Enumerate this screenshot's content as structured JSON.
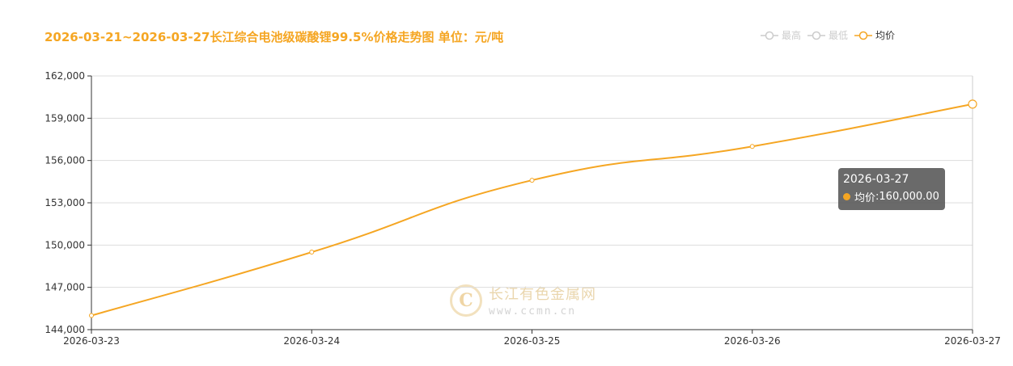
{
  "title": "2026-03-21~2026-03-27长江综合电池级碳酸锂99.5%价格走势图 单位：元/吨",
  "legend": [
    {
      "label": "最高",
      "active": false
    },
    {
      "label": "最低",
      "active": false
    },
    {
      "label": "均价",
      "active": true
    }
  ],
  "colors": {
    "accent": "#f5a623",
    "inactive": "#cccccc",
    "grid": "#dddddd"
  },
  "tooltip": {
    "date": "2026-03-27",
    "series": "均价",
    "value": "160,000.00"
  },
  "watermark": {
    "logo_letter": "C",
    "name": "长江有色金属网",
    "url": "www.ccmn.cn"
  },
  "chart_data": {
    "type": "line",
    "categories": [
      "2026-03-23",
      "2026-03-24",
      "2026-03-25",
      "2026-03-26",
      "2026-03-27"
    ],
    "series": [
      {
        "name": "均价",
        "values": [
          145000,
          149500,
          154600,
          157000,
          160000
        ]
      }
    ],
    "ylim": [
      144000,
      162000
    ],
    "yticks": [
      "144,000",
      "147,000",
      "150,000",
      "153,000",
      "156,000",
      "159,000",
      "162,000"
    ],
    "ytick_values": [
      144000,
      147000,
      150000,
      153000,
      156000,
      159000,
      162000
    ],
    "grid": true,
    "legend_position": "top-right"
  }
}
